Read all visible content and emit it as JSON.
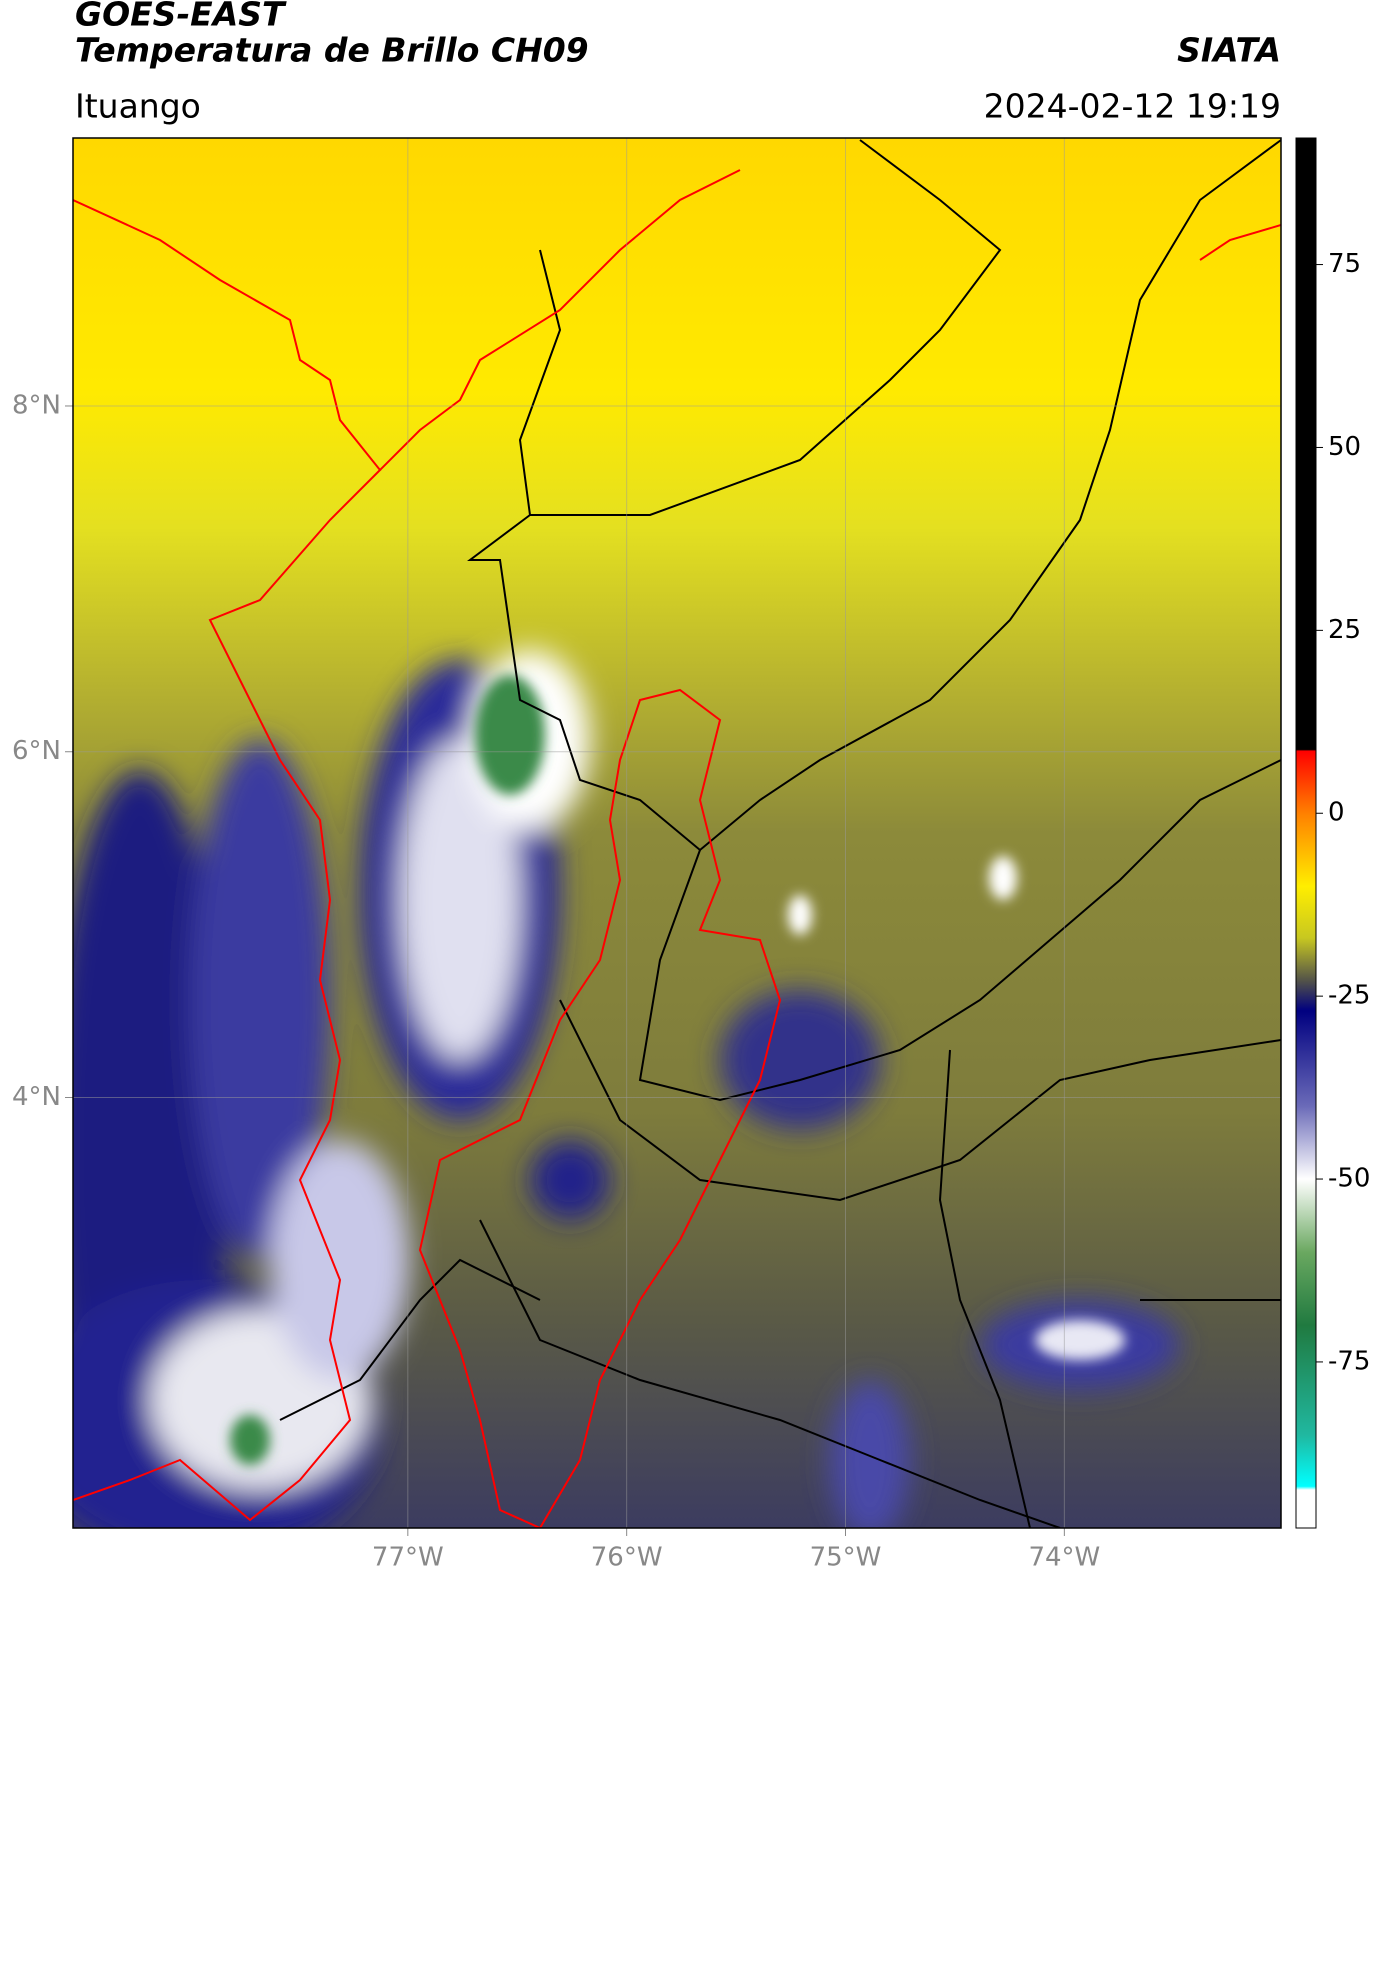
{
  "header": {
    "title": "GOES-EAST",
    "subtitle": "Temperatura de Brillo CH09",
    "source": "SIATA",
    "region": "Ituango",
    "timestamp": "2024-02-12 19:19"
  },
  "map": {
    "xlim": [
      -78.53,
      -73.01
    ],
    "ylim": [
      1.51,
      9.55
    ],
    "xticks": [
      {
        "value": -77,
        "label": "77°W"
      },
      {
        "value": -76,
        "label": "76°W"
      },
      {
        "value": -75,
        "label": "75°W"
      },
      {
        "value": -74,
        "label": "74°W"
      }
    ],
    "yticks": [
      {
        "value": 8,
        "label": "8°N"
      },
      {
        "value": 6,
        "label": "6°N"
      },
      {
        "value": 4,
        "label": "4°N"
      }
    ],
    "grid": true
  },
  "colorbar": {
    "lim": [
      -97.7,
      92.3
    ],
    "ticks": [
      75,
      50,
      25,
      0,
      -25,
      -50,
      -75
    ],
    "colormap": [
      {
        "value": 92.3,
        "color": "#000000"
      },
      {
        "value": 8.7,
        "color": "#000000"
      },
      {
        "value": 8.5,
        "color": "#ff0000"
      },
      {
        "value": 0,
        "color": "#ff8000"
      },
      {
        "value": -10,
        "color": "#ffee00"
      },
      {
        "value": -17,
        "color": "#c8c820"
      },
      {
        "value": -23,
        "color": "#50504a"
      },
      {
        "value": -27,
        "color": "#000080"
      },
      {
        "value": -40,
        "color": "#6a6ab8"
      },
      {
        "value": -50,
        "color": "#ffffff"
      },
      {
        "value": -60,
        "color": "#6aa860"
      },
      {
        "value": -70,
        "color": "#207a40"
      },
      {
        "value": -85,
        "color": "#20b8a0"
      },
      {
        "value": -92,
        "color": "#00ffff"
      },
      {
        "value": -92.5,
        "color": "#ffffff"
      },
      {
        "value": -97.7,
        "color": "#ffffff"
      }
    ]
  }
}
